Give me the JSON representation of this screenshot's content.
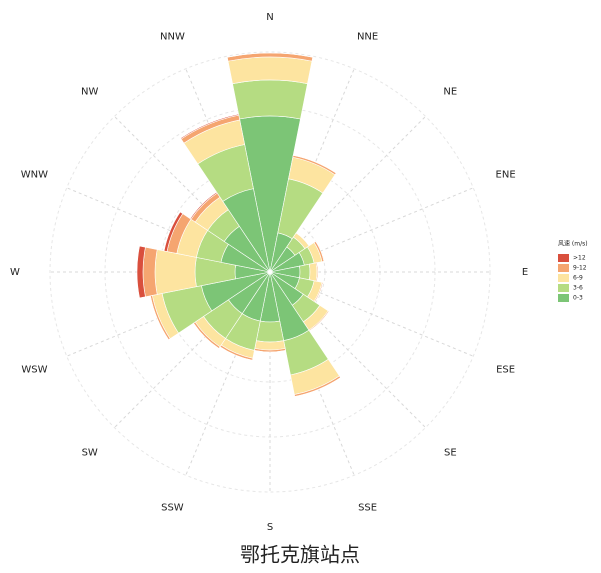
{
  "chart_data": {
    "type": "windrose",
    "title": "鄂托克旗站点",
    "legend_title": "风速 (m/s)",
    "legend": "right",
    "categories": [
      "N",
      "NNE",
      "NE",
      "ENE",
      "E",
      "ESE",
      "SE",
      "SSE",
      "S",
      "SSW",
      "SW",
      "WSW",
      "W",
      "WNW",
      "NW",
      "NNW"
    ],
    "rlim": [
      0,
      22
    ],
    "series": [
      {
        "name": "0-3",
        "color": "#7cc576",
        "values": [
          15.6,
          4.0,
          3.0,
          3.5,
          3.0,
          3.0,
          4.0,
          7.0,
          5.0,
          5.0,
          5.0,
          7.0,
          3.5,
          5.0,
          5.5,
          8.5
        ]
      },
      {
        "name": "3-6",
        "color": "#b5dc82",
        "values": [
          3.6,
          5.5,
          1.2,
          1.0,
          1.0,
          1.5,
          2.0,
          3.5,
          2.0,
          3.0,
          3.0,
          4.0,
          4.0,
          2.5,
          2.0,
          4.5
        ]
      },
      {
        "name": "6-9",
        "color": "#fde4a0",
        "values": [
          2.3,
          2.2,
          0.5,
          0.8,
          0.7,
          0.8,
          1.0,
          2.0,
          0.8,
          0.8,
          1.0,
          1.0,
          4.0,
          2.0,
          1.5,
          2.5
        ]
      },
      {
        "name": "9-12",
        "color": "#f5a570",
        "values": [
          0.4,
          0.2,
          0,
          0.2,
          0.1,
          0.1,
          0.1,
          0.2,
          0.2,
          0.2,
          0.2,
          0.2,
          1.2,
          1.0,
          0.5,
          0.5
        ]
      },
      {
        "name": ">12",
        "color": "#d94f3d",
        "values": [
          0,
          0,
          0,
          0,
          0,
          0,
          0,
          0,
          0,
          0,
          0,
          0,
          0.6,
          0.3,
          0.1,
          0.1
        ]
      }
    ]
  }
}
